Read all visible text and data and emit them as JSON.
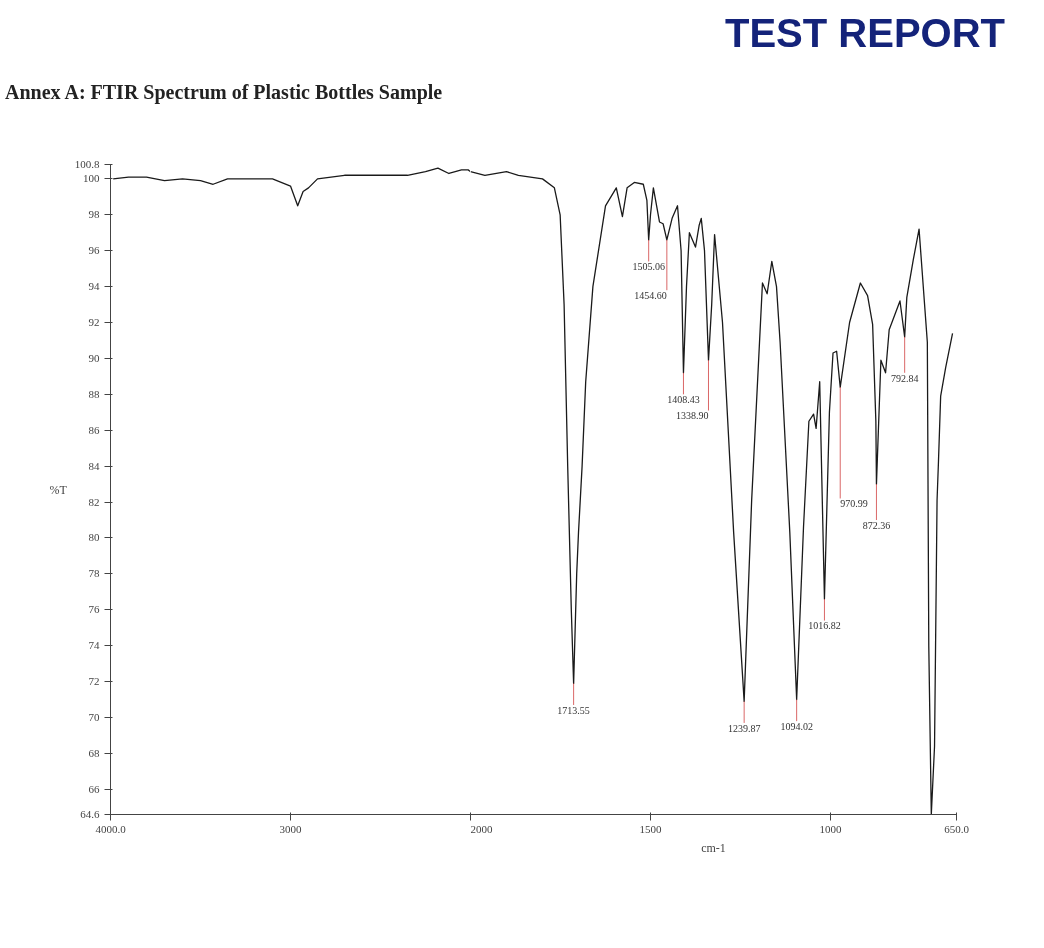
{
  "chart_data": [
    {
      "type": "line",
      "title": "Annex A: FTIR Spectrum of Plastic Bottles Sample",
      "ylabel": "%T",
      "xlim": [
        4000,
        2000
      ],
      "ylim": [
        64.6,
        100.8
      ],
      "xticks": [
        {
          "value": 4000,
          "label": "4000.0"
        },
        3000
      ],
      "yticks": [
        {
          "value": 64.6,
          "label": "64.6"
        },
        66,
        68,
        70,
        72,
        74,
        76,
        78,
        80,
        82,
        84,
        86,
        88,
        90,
        92,
        94,
        96,
        98,
        100,
        {
          "value": 100.8,
          "label": "100.8"
        }
      ],
      "grid": false,
      "marker": "none",
      "line_style": "solid",
      "series": [
        {
          "color": "#1a1a1a",
          "x": [
            3985,
            3900,
            3800,
            3700,
            3600,
            3500,
            3430,
            3350,
            3200,
            3100,
            3000,
            2960,
            2930,
            2900,
            2850,
            2700,
            2500,
            2350,
            2250,
            2181,
            2120,
            2050,
            2013,
            2000
          ],
          "values": [
            100.0,
            100.1,
            100.1,
            99.9,
            100.0,
            99.9,
            99.7,
            100.0,
            100.0,
            100.0,
            99.6,
            98.5,
            99.3,
            99.5,
            100.0,
            100.2,
            100.2,
            100.2,
            100.4,
            100.6,
            100.3,
            100.5,
            100.5,
            100.4
          ]
        }
      ],
      "annotations": [
        "TEST REPORT"
      ]
    },
    {
      "type": "line",
      "xlabel": "cm-1",
      "xlim": [
        2000,
        650
      ],
      "ylim": [
        64.6,
        100.8
      ],
      "xticks": [
        2000,
        1500,
        1000,
        {
          "value": 650,
          "label": "650.0"
        }
      ],
      "tick_labels": "x",
      "grid": false,
      "marker": "none",
      "line_style": "solid",
      "series": [
        {
          "color": "#1a1a1a",
          "x": [
            2000,
            1960,
            1900,
            1867,
            1800,
            1767,
            1751,
            1740,
            1730,
            1720,
            1713.55,
            1705,
            1700,
            1690,
            1680,
            1660,
            1625,
            1595,
            1578,
            1565,
            1545,
            1520,
            1510,
            1505.06,
            1500,
            1492,
            1475,
            1465,
            1454.6,
            1440,
            1425,
            1415,
            1408.43,
            1400,
            1392,
            1375,
            1365,
            1359,
            1350,
            1338.9,
            1330,
            1322,
            1300,
            1269,
            1239.87,
            1219,
            1189,
            1176,
            1163,
            1150,
            1140,
            1113,
            1094.02,
            1075,
            1060,
            1047,
            1040,
            1030,
            1016.82,
            1003,
            993,
            983,
            973,
            947,
            917,
            897,
            883,
            874,
            872.36,
            860,
            847,
            837,
            807,
            794,
            788,
            770,
            754,
            731,
            727,
            720,
            711,
            704,
            700,
            694,
            680,
            661
          ],
          "values": [
            100.4,
            100.2,
            100.4,
            100.2,
            100.0,
            99.5,
            98.0,
            93.0,
            84.0,
            76.0,
            71.9,
            78.0,
            80.3,
            84.0,
            88.7,
            94.0,
            98.5,
            99.5,
            97.9,
            99.5,
            99.8,
            99.7,
            98.8,
            96.6,
            98.0,
            99.5,
            97.6,
            97.5,
            96.6,
            97.8,
            98.5,
            96.0,
            89.2,
            94.0,
            97.0,
            96.2,
            97.4,
            97.8,
            96.0,
            89.9,
            93.0,
            96.9,
            92.0,
            80.3,
            70.9,
            82.1,
            94.2,
            93.6,
            95.4,
            94.0,
            90.9,
            80.3,
            71.0,
            80.6,
            86.5,
            86.9,
            86.1,
            88.7,
            76.6,
            87.0,
            90.3,
            90.4,
            88.4,
            92.0,
            94.2,
            93.5,
            91.9,
            86.5,
            83.0,
            89.9,
            89.2,
            91.6,
            93.2,
            91.2,
            93.4,
            95.5,
            97.2,
            90.9,
            74.0,
            64.6,
            68.4,
            82.1,
            84.3,
            87.9,
            89.5,
            91.4
          ]
        }
      ],
      "annotations": [
        {
          "text": "1713.55",
          "x": 1713.55,
          "y": 71.9
        },
        {
          "text": "1505.06",
          "x": 1505.06,
          "y": 96.6
        },
        {
          "text": "1454.60",
          "x": 1454.6,
          "y": 96.6
        },
        {
          "text": "1408.43",
          "x": 1408.43,
          "y": 89.2
        },
        {
          "text": "1338.90",
          "x": 1338.9,
          "y": 89.9
        },
        {
          "text": "1239.87",
          "x": 1239.87,
          "y": 70.9
        },
        {
          "text": "1094.02",
          "x": 1094.02,
          "y": 71.0
        },
        {
          "text": "1016.82",
          "x": 1016.82,
          "y": 76.6
        },
        {
          "text": "970.99",
          "x": 973,
          "y": 88.4
        },
        {
          "text": "872.36",
          "x": 872.36,
          "y": 83.0
        },
        {
          "text": "792.84",
          "x": 794,
          "y": 91.2
        }
      ]
    }
  ]
}
